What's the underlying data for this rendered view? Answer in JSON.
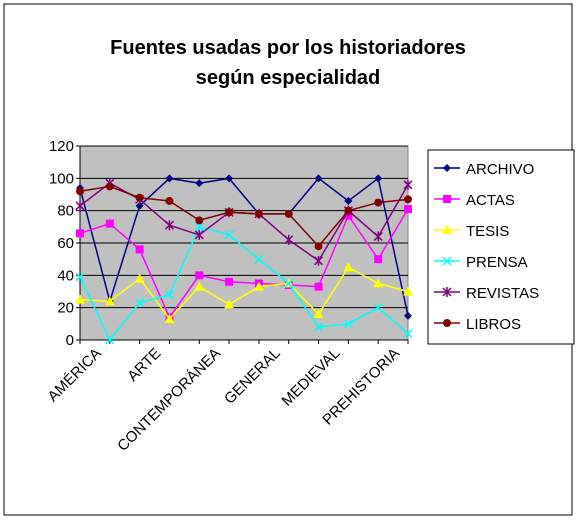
{
  "chart_data": {
    "type": "line",
    "title": [
      "Fuentes usadas por los historiadores",
      "según especialidad"
    ],
    "categories": [
      "AMÉRICA",
      null,
      "ARTE",
      null,
      "CONTEMPORÁNEA",
      null,
      "GENERAL",
      null,
      "MEDIEVAL",
      null,
      "PREHISTORIA",
      null
    ],
    "series": [
      {
        "name": "ARCHIVO",
        "color": "#000080",
        "marker": "diamond",
        "values": [
          94,
          24,
          83,
          100,
          97,
          100,
          78,
          78,
          100,
          86,
          100,
          15
        ]
      },
      {
        "name": "ACTAS",
        "color": "#ff00ff",
        "marker": "square",
        "values": [
          66,
          72,
          56,
          14,
          40,
          36,
          35,
          34,
          33,
          77,
          50,
          81
        ]
      },
      {
        "name": "TESIS",
        "color": "#ffff00",
        "marker": "triangle",
        "values": [
          25,
          24,
          38,
          13,
          33,
          22,
          33,
          35,
          16,
          45,
          35,
          30
        ]
      },
      {
        "name": "PRENSA",
        "color": "#00ffff",
        "marker": "x",
        "values": [
          39,
          0,
          23,
          28,
          70,
          65,
          50,
          35,
          8,
          10,
          20,
          4
        ]
      },
      {
        "name": "REVISTAS",
        "color": "#800080",
        "marker": "star",
        "values": [
          83,
          97,
          87,
          71,
          65,
          79,
          78,
          62,
          49,
          80,
          64,
          96
        ]
      },
      {
        "name": "LIBROS",
        "color": "#800000",
        "marker": "circle",
        "values": [
          92,
          95,
          88,
          86,
          74,
          79,
          78,
          78,
          58,
          80,
          85,
          87
        ]
      }
    ],
    "ylim": [
      0,
      120
    ],
    "yticks": [
      0,
      20,
      40,
      60,
      80,
      100,
      120
    ],
    "grid": true,
    "legend": "right"
  }
}
